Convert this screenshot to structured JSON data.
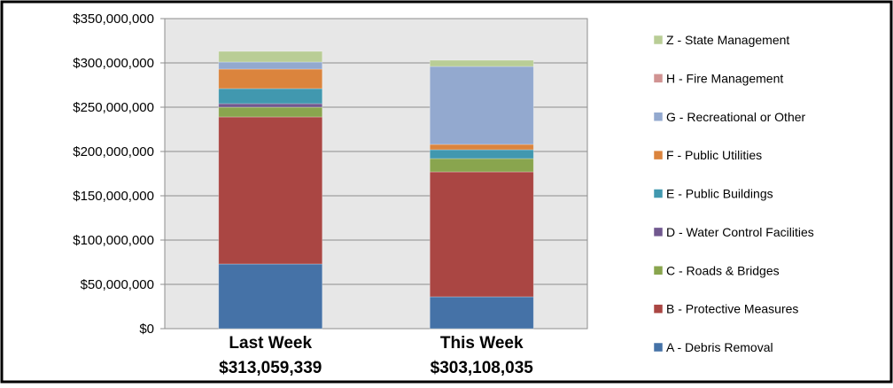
{
  "chart_data": {
    "type": "bar",
    "stacked": true,
    "categories": [
      "Last Week",
      "This Week"
    ],
    "category_totals": [
      "$313,059,339",
      "$303,108,035"
    ],
    "ylim": [
      0,
      350000000
    ],
    "yticks": [
      0,
      50000000,
      100000000,
      150000000,
      200000000,
      250000000,
      300000000,
      350000000
    ],
    "ytick_labels": [
      "$0",
      "$50,000,000",
      "$100,000,000",
      "$150,000,000",
      "$200,000,000",
      "$250,000,000",
      "$300,000,000",
      "$350,000,000"
    ],
    "grid": true,
    "legend_position": "right",
    "series": [
      {
        "name": "A - Debris Removal",
        "color": "#4572A7",
        "values": [
          73000000,
          36000000
        ]
      },
      {
        "name": "B - Protective Measures",
        "color": "#AA4643",
        "values": [
          166000000,
          141000000
        ]
      },
      {
        "name": "C - Roads & Bridges",
        "color": "#89A54E",
        "values": [
          11000000,
          15000000
        ]
      },
      {
        "name": "D - Water Control Facilities",
        "color": "#71588F",
        "values": [
          4000000,
          0
        ]
      },
      {
        "name": "E - Public Buildings",
        "color": "#4198AF",
        "values": [
          17000000,
          10000000
        ]
      },
      {
        "name": "F - Public Utilities",
        "color": "#DB843D",
        "values": [
          22000000,
          6000000
        ]
      },
      {
        "name": "G - Recreational or Other",
        "color": "#93A9CF",
        "values": [
          8000000,
          88000000
        ]
      },
      {
        "name": "H - Fire Management",
        "color": "#D19392",
        "values": [
          0,
          0
        ]
      },
      {
        "name": "Z - State Management",
        "color": "#B9CD96",
        "values": [
          12000000,
          7000000
        ]
      }
    ]
  }
}
